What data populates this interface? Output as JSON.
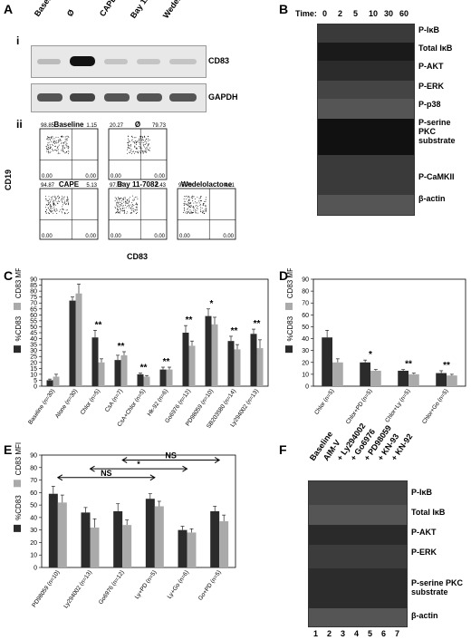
{
  "panels": {
    "A": "A",
    "B": "B",
    "C": "C",
    "D": "D",
    "E": "E",
    "F": "F"
  },
  "A": {
    "sub_i": "i",
    "sub_ii": "ii",
    "lanes": [
      "Baseline",
      "Ø",
      "CAPE",
      "Bay 11-7082",
      "Wedelolactone"
    ],
    "bands": [
      "CD83",
      "GAPDH"
    ],
    "ylabel": "CD19",
    "xlabel": "CD83",
    "flow": [
      {
        "name": "Baseline",
        "ul": "98.85",
        "ur": "1.15",
        "ll": "0.00",
        "lr": "0.00"
      },
      {
        "name": "Ø",
        "ul": "20.27",
        "ur": "79.73",
        "ll": "0.00",
        "lr": "0.00"
      },
      {
        "name": "CAPE",
        "ul": "94.87",
        "ur": "5.13",
        "ll": "0.00",
        "lr": "0.00"
      },
      {
        "name": "Bay 11-7082",
        "ul": "97.57",
        "ur": "2.43",
        "ll": "0.00",
        "lr": "0.00"
      },
      {
        "name": "Wedelolactone",
        "ul": "95.79",
        "ur": "4.21",
        "ll": "0.00",
        "lr": "0.00"
      }
    ]
  },
  "B": {
    "time_label": "Time:",
    "times": [
      "0",
      "2",
      "5",
      "10",
      "30",
      "60"
    ],
    "rows": [
      "P-IκB",
      "Total IκB",
      "P-AKT",
      "P-ERK",
      "P-p38",
      "P-serine PKC substrate",
      "P-CaMKII",
      "β-actin"
    ]
  },
  "F": {
    "lanes": [
      "Baseline",
      "AIM-V",
      "+ Ly294002",
      "+ Go6976",
      "+ PD98059",
      "+ KN-93",
      "+ KN-92"
    ],
    "numbers": [
      "1",
      "2",
      "3",
      "4",
      "5",
      "6",
      "7"
    ],
    "rows": [
      "P-IκB",
      "Total IκB",
      "P-AKT",
      "P-ERK",
      "P-serine PKC substrate",
      "β-actin"
    ]
  },
  "chart_data": [
    {
      "panel": "C",
      "type": "bar",
      "categories": [
        "Baseline (n=30)",
        "Alone (n=30)",
        "Chlor (n=5)",
        "CsA (n=7)",
        "CsA+Chlor (n=5)",
        "Hk-92 (n=6)",
        "Go6976 (n=12)",
        "PD98059 (n=10)",
        "SB203580 (n=14)",
        "Ly294002 (n=13)"
      ],
      "series": [
        {
          "name": "%CD83",
          "values": [
            5,
            72,
            41,
            22,
            10,
            14,
            45,
            59,
            38,
            44
          ]
        },
        {
          "name": "CD83 MFI",
          "values": [
            8,
            78,
            20,
            26,
            8,
            14,
            34,
            52,
            31,
            32
          ]
        }
      ],
      "errors": [
        [
          1,
          3,
          6,
          4,
          1,
          2,
          6,
          6,
          4,
          4
        ],
        [
          2,
          8,
          3,
          3,
          1,
          2,
          4,
          6,
          4,
          7
        ]
      ],
      "ylim": [
        0,
        90
      ],
      "yticks": [
        0,
        5,
        10,
        15,
        20,
        25,
        30,
        35,
        40,
        45,
        50,
        55,
        60,
        65,
        70,
        75,
        80,
        85,
        90
      ],
      "ylabel_dark": "%CD83",
      "ylabel_light": "CD83 MFI",
      "annotations": [
        "**",
        "**",
        "**",
        "**",
        "**",
        "*",
        "**",
        "**"
      ],
      "annot_index": [
        2,
        3,
        4,
        5,
        6,
        7,
        8,
        9
      ]
    },
    {
      "panel": "D",
      "type": "bar",
      "categories": [
        "Chlor (n=5)",
        "Chlor+PD (n=5)",
        "Chlor+Ly (n=5)",
        "Chlor+Go (n=5)"
      ],
      "series": [
        {
          "name": "%CD83",
          "values": [
            41,
            20,
            13,
            11
          ]
        },
        {
          "name": "CD83 MFI",
          "values": [
            20,
            13,
            10,
            9
          ]
        }
      ],
      "errors": [
        [
          6,
          2,
          1,
          2
        ],
        [
          3,
          1,
          1,
          1
        ]
      ],
      "ylim": [
        0,
        90
      ],
      "yticks": [
        0,
        10,
        20,
        30,
        40,
        50,
        60,
        70,
        80,
        90
      ],
      "ylabel_dark": "%CD83",
      "ylabel_light": "CD83 MFI",
      "annotations": [
        "*",
        "**",
        "**"
      ],
      "annot_index": [
        1,
        2,
        3
      ]
    },
    {
      "panel": "E",
      "type": "bar",
      "categories": [
        "PD98059 (n=10)",
        "Ly294002 (n=13)",
        "Go6976 (n=12)",
        "Ly+PD (n=5)",
        "Ly+Go (n=6)",
        "Go+PD (n=5)"
      ],
      "series": [
        {
          "name": "%CD83",
          "values": [
            59,
            44,
            45,
            55,
            30,
            45
          ]
        },
        {
          "name": "CD83 MFI",
          "values": [
            52,
            32,
            34,
            49,
            28,
            37
          ]
        }
      ],
      "errors": [
        [
          6,
          4,
          6,
          4,
          3,
          4
        ],
        [
          6,
          7,
          4,
          4,
          3,
          5
        ]
      ],
      "ylim": [
        0,
        90
      ],
      "yticks": [
        0,
        10,
        20,
        30,
        40,
        50,
        60,
        70,
        80,
        90
      ],
      "ylabel_dark": "%CD83",
      "ylabel_light": "CD83 MFI",
      "brackets": [
        {
          "from": 0,
          "to": 3,
          "label": "NS"
        },
        {
          "from": 1,
          "to": 4,
          "label": "*"
        },
        {
          "from": 2,
          "to": 5,
          "label": "NS"
        }
      ]
    }
  ]
}
